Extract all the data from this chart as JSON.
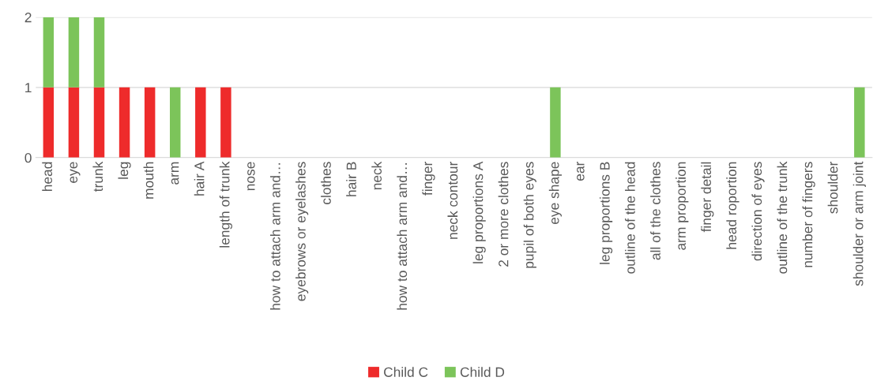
{
  "chart_data": {
    "type": "bar",
    "stacked": true,
    "categories": [
      "head",
      "eye",
      "trunk",
      "leg",
      "mouth",
      "arm",
      "hair A",
      "length of trunk",
      "nose",
      "how to attach arm and…",
      "eyebrows or eyelashes",
      "clothes",
      "hair B",
      "neck",
      "how to attach arm and…",
      "finger",
      "neck contour",
      "leg proportions A",
      "2 or more clothes",
      "pupil of both eyes",
      "eye shape",
      "ear",
      "leg proportions B",
      "outline of the head",
      "all of the clothes",
      "arm proportion",
      "finger detail",
      "head roportion",
      "direction of eyes",
      "outline of the trunk",
      "number of fingers",
      "shoulder",
      "shoulder or arm joint"
    ],
    "series": [
      {
        "name": "Child C",
        "color": "#ee2b2b",
        "values": [
          1,
          1,
          1,
          1,
          1,
          0,
          1,
          1,
          0,
          0,
          0,
          0,
          0,
          0,
          0,
          0,
          0,
          0,
          0,
          0,
          0,
          0,
          0,
          0,
          0,
          0,
          0,
          0,
          0,
          0,
          0,
          0,
          0
        ]
      },
      {
        "name": "Child D",
        "color": "#7cc45a",
        "values": [
          1,
          1,
          1,
          0,
          0,
          1,
          0,
          0,
          0,
          0,
          0,
          0,
          0,
          0,
          0,
          0,
          0,
          0,
          0,
          0,
          1,
          0,
          0,
          0,
          0,
          0,
          0,
          0,
          0,
          0,
          0,
          0,
          1
        ]
      }
    ],
    "ylim": [
      0,
      2
    ],
    "yticks": [
      0,
      1,
      2
    ],
    "grid": "y",
    "legend": "bottom"
  }
}
